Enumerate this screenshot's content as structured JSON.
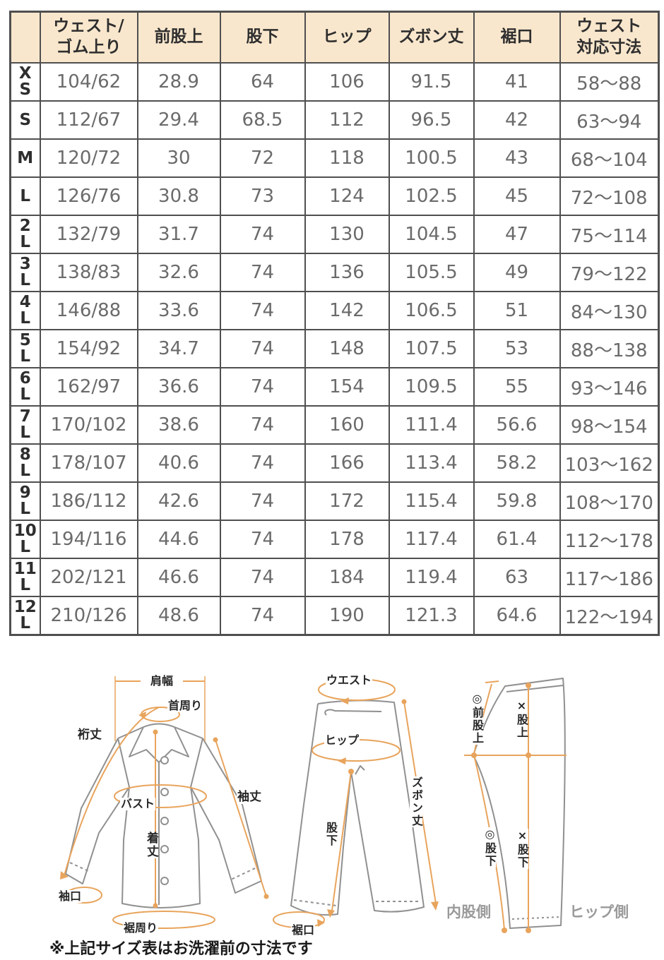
{
  "chart_data": {
    "type": "table",
    "columns": [
      "",
      "ウェスト/\nゴム上り",
      "前股上",
      "股下",
      "ヒップ",
      "ズボン丈",
      "裾口",
      "ウェスト\n対応寸法"
    ],
    "rows": [
      [
        "XS",
        "104/62",
        "28.9",
        "64",
        "106",
        "91.5",
        "41",
        "58〜88"
      ],
      [
        "S",
        "112/67",
        "29.4",
        "68.5",
        "112",
        "96.5",
        "42",
        "63〜94"
      ],
      [
        "M",
        "120/72",
        "30",
        "72",
        "118",
        "100.5",
        "43",
        "68〜104"
      ],
      [
        "L",
        "126/76",
        "30.8",
        "73",
        "124",
        "102.5",
        "45",
        "72〜108"
      ],
      [
        "2L",
        "132/79",
        "31.7",
        "74",
        "130",
        "104.5",
        "47",
        "75〜114"
      ],
      [
        "3L",
        "138/83",
        "32.6",
        "74",
        "136",
        "105.5",
        "49",
        "79〜122"
      ],
      [
        "4L",
        "146/88",
        "33.6",
        "74",
        "142",
        "106.5",
        "51",
        "84〜130"
      ],
      [
        "5L",
        "154/92",
        "34.7",
        "74",
        "148",
        "107.5",
        "53",
        "88〜138"
      ],
      [
        "6L",
        "162/97",
        "36.6",
        "74",
        "154",
        "109.5",
        "55",
        "93〜146"
      ],
      [
        "7L",
        "170/102",
        "38.6",
        "74",
        "160",
        "111.4",
        "56.6",
        "98〜154"
      ],
      [
        "8L",
        "178/107",
        "40.6",
        "74",
        "166",
        "113.4",
        "58.2",
        "103〜162"
      ],
      [
        "9L",
        "186/112",
        "42.6",
        "74",
        "172",
        "115.4",
        "59.8",
        "108〜170"
      ],
      [
        "10L",
        "194/116",
        "44.6",
        "74",
        "178",
        "117.4",
        "61.4",
        "112〜178"
      ],
      [
        "11L",
        "202/121",
        "46.6",
        "74",
        "184",
        "119.4",
        "63",
        "117〜186"
      ],
      [
        "12L",
        "210/126",
        "48.6",
        "74",
        "190",
        "121.3",
        "64.6",
        "122〜194"
      ]
    ]
  },
  "diagrams": {
    "shirt": {
      "shoulder_width": "肩幅",
      "neck": "首周り",
      "sleeve_total": "裄丈",
      "bust": "バスト",
      "sleeve": "袖丈",
      "body_length": "着丈",
      "cuff": "袖口",
      "hem_around": "裾周り"
    },
    "pants_front": {
      "waist": "ウエスト",
      "hip": "ヒップ",
      "length": "ズボン丈",
      "inseam": "股下",
      "hem": "裾口"
    },
    "pants_side": {
      "front_rise": "◎前股上",
      "rise": "×股上",
      "inseam_a": "◎股下",
      "inseam_b": "×股下",
      "inner_label": "内股側",
      "hip_label": "ヒップ側"
    }
  },
  "footer": {
    "note": "※上記サイズ表はお洗濯前の寸法です"
  },
  "colors": {
    "header_bg": "#f9e7cd",
    "header_text": "#2e2e2e",
    "cell_text": "#6b6b6b",
    "border": "#4f4f4f",
    "label_text": "#262626",
    "side_text": "#9a9a9a",
    "arrow": "#e8a45c",
    "outline": "#909090"
  }
}
